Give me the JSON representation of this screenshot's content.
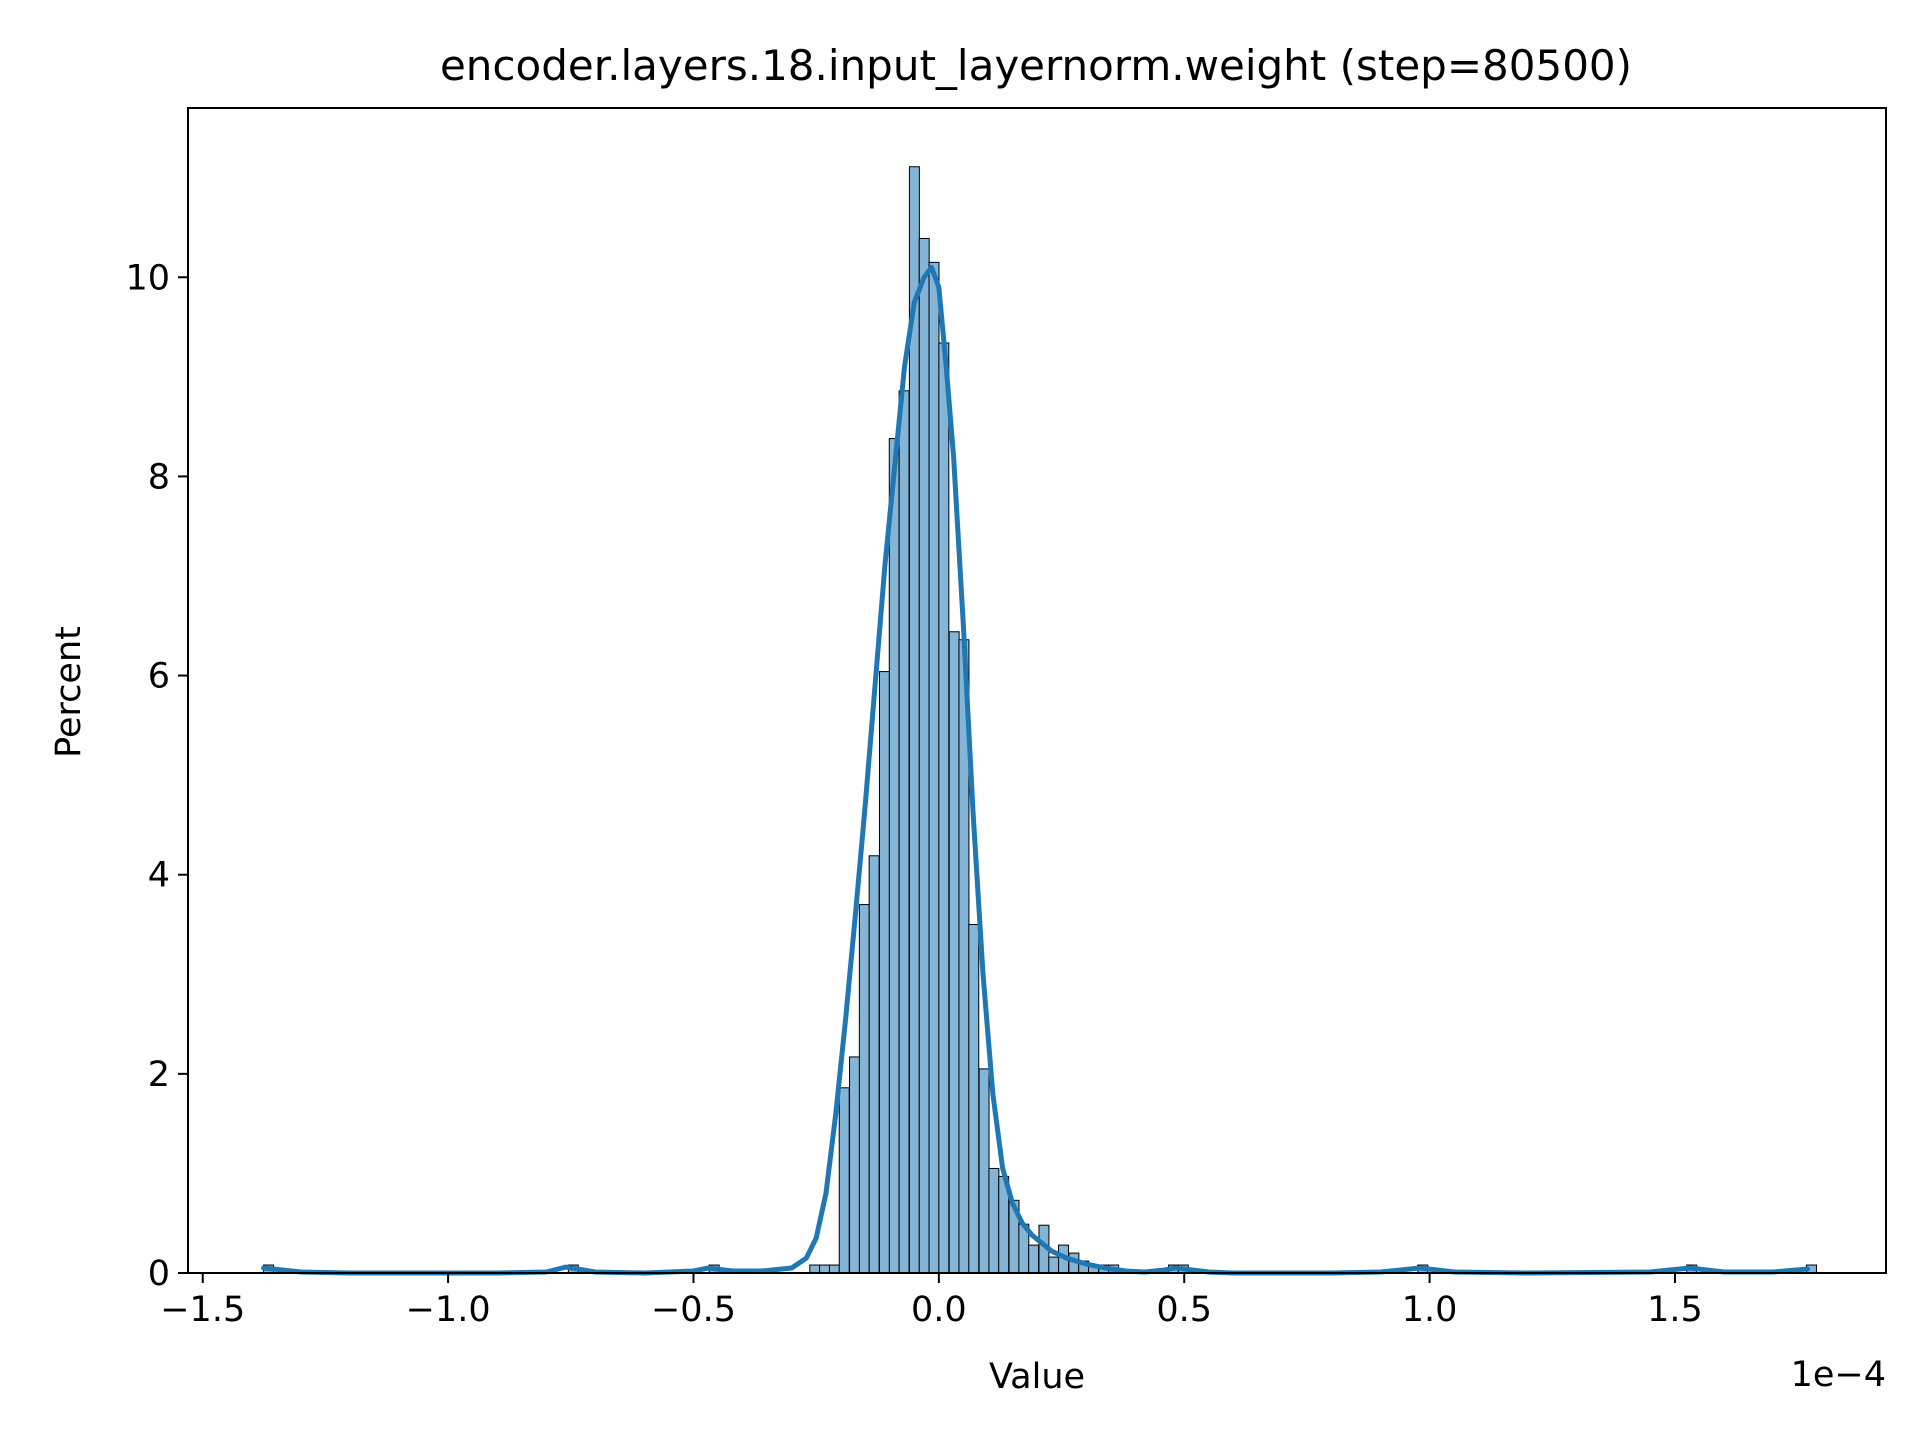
{
  "chart_data": {
    "type": "bar",
    "title": "encoder.layers.18.input_layernorm.weight (step=80500)",
    "xlabel": "Value",
    "ylabel": "Percent",
    "x_offset_label": "1e−4",
    "xlim": [
      -1.53,
      1.93
    ],
    "ylim": [
      0,
      11.7
    ],
    "xticks": [
      {
        "value": -1.5,
        "label": "−1.5"
      },
      {
        "value": -1.0,
        "label": "−1.0"
      },
      {
        "value": -0.5,
        "label": "−0.5"
      },
      {
        "value": 0.0,
        "label": "0.0"
      },
      {
        "value": 0.5,
        "label": "0.5"
      },
      {
        "value": 1.0,
        "label": "1.0"
      },
      {
        "value": 1.5,
        "label": "1.5"
      }
    ],
    "yticks": [
      {
        "value": 0,
        "label": "0"
      },
      {
        "value": 2,
        "label": "2"
      },
      {
        "value": 4,
        "label": "4"
      },
      {
        "value": 6,
        "label": "6"
      },
      {
        "value": 8,
        "label": "8"
      },
      {
        "value": 10,
        "label": "10"
      }
    ],
    "bin_width": 0.0203,
    "bins": [
      {
        "x": -1.376,
        "percent": 0.08
      },
      {
        "x": -0.755,
        "percent": 0.08
      },
      {
        "x": -0.468,
        "percent": 0.08
      },
      {
        "x": -0.263,
        "percent": 0.08
      },
      {
        "x": -0.243,
        "percent": 0.08
      },
      {
        "x": -0.223,
        "percent": 0.08
      },
      {
        "x": -0.203,
        "percent": 1.86
      },
      {
        "x": -0.182,
        "percent": 2.17
      },
      {
        "x": -0.162,
        "percent": 3.7
      },
      {
        "x": -0.142,
        "percent": 4.19
      },
      {
        "x": -0.121,
        "percent": 6.04
      },
      {
        "x": -0.101,
        "percent": 8.38
      },
      {
        "x": -0.081,
        "percent": 8.86
      },
      {
        "x": -0.06,
        "percent": 11.11
      },
      {
        "x": -0.04,
        "percent": 10.39
      },
      {
        "x": -0.02,
        "percent": 10.15
      },
      {
        "x": 0.0,
        "percent": 9.34
      },
      {
        "x": 0.021,
        "percent": 6.44
      },
      {
        "x": 0.041,
        "percent": 6.36
      },
      {
        "x": 0.061,
        "percent": 3.5
      },
      {
        "x": 0.082,
        "percent": 2.05
      },
      {
        "x": 0.102,
        "percent": 1.05
      },
      {
        "x": 0.122,
        "percent": 0.97
      },
      {
        "x": 0.143,
        "percent": 0.73
      },
      {
        "x": 0.163,
        "percent": 0.49
      },
      {
        "x": 0.183,
        "percent": 0.28
      },
      {
        "x": 0.204,
        "percent": 0.48
      },
      {
        "x": 0.224,
        "percent": 0.16
      },
      {
        "x": 0.244,
        "percent": 0.28
      },
      {
        "x": 0.265,
        "percent": 0.2
      },
      {
        "x": 0.285,
        "percent": 0.12
      },
      {
        "x": 0.305,
        "percent": 0.08
      },
      {
        "x": 0.326,
        "percent": 0.08
      },
      {
        "x": 0.346,
        "percent": 0.08
      },
      {
        "x": 0.468,
        "percent": 0.08
      },
      {
        "x": 0.488,
        "percent": 0.08
      },
      {
        "x": 0.976,
        "percent": 0.08
      },
      {
        "x": 1.524,
        "percent": 0.08
      },
      {
        "x": 1.768,
        "percent": 0.08
      }
    ],
    "kde_x": [
      -1.376,
      -1.3,
      -1.2,
      -1.0,
      -0.9,
      -0.8,
      -0.76,
      -0.7,
      -0.6,
      -0.5,
      -0.47,
      -0.42,
      -0.36,
      -0.3,
      -0.27,
      -0.25,
      -0.23,
      -0.21,
      -0.19,
      -0.17,
      -0.15,
      -0.13,
      -0.11,
      -0.09,
      -0.07,
      -0.05,
      -0.03,
      -0.015,
      0.0,
      0.015,
      0.03,
      0.05,
      0.07,
      0.09,
      0.11,
      0.13,
      0.15,
      0.17,
      0.19,
      0.21,
      0.23,
      0.26,
      0.3,
      0.34,
      0.38,
      0.42,
      0.46,
      0.48,
      0.5,
      0.55,
      0.6,
      0.8,
      0.9,
      0.98,
      1.05,
      1.2,
      1.45,
      1.53,
      1.6,
      1.7,
      1.77
    ],
    "kde_y": [
      0.05,
      0.01,
      0.0,
      0.0,
      0.0,
      0.01,
      0.06,
      0.01,
      0.0,
      0.02,
      0.05,
      0.02,
      0.02,
      0.05,
      0.15,
      0.35,
      0.8,
      1.6,
      2.55,
      3.6,
      4.7,
      5.9,
      7.1,
      8.1,
      9.1,
      9.75,
      10.0,
      10.1,
      9.9,
      9.1,
      8.2,
      6.5,
      4.6,
      3.0,
      1.8,
      1.05,
      0.7,
      0.5,
      0.38,
      0.3,
      0.22,
      0.15,
      0.09,
      0.05,
      0.02,
      0.01,
      0.03,
      0.05,
      0.04,
      0.01,
      0.0,
      0.0,
      0.01,
      0.05,
      0.01,
      0.0,
      0.01,
      0.05,
      0.01,
      0.01,
      0.04
    ],
    "bar_fill": "#84b4d6",
    "kde_color": "#1f77b4",
    "grid": false,
    "legend": false
  }
}
